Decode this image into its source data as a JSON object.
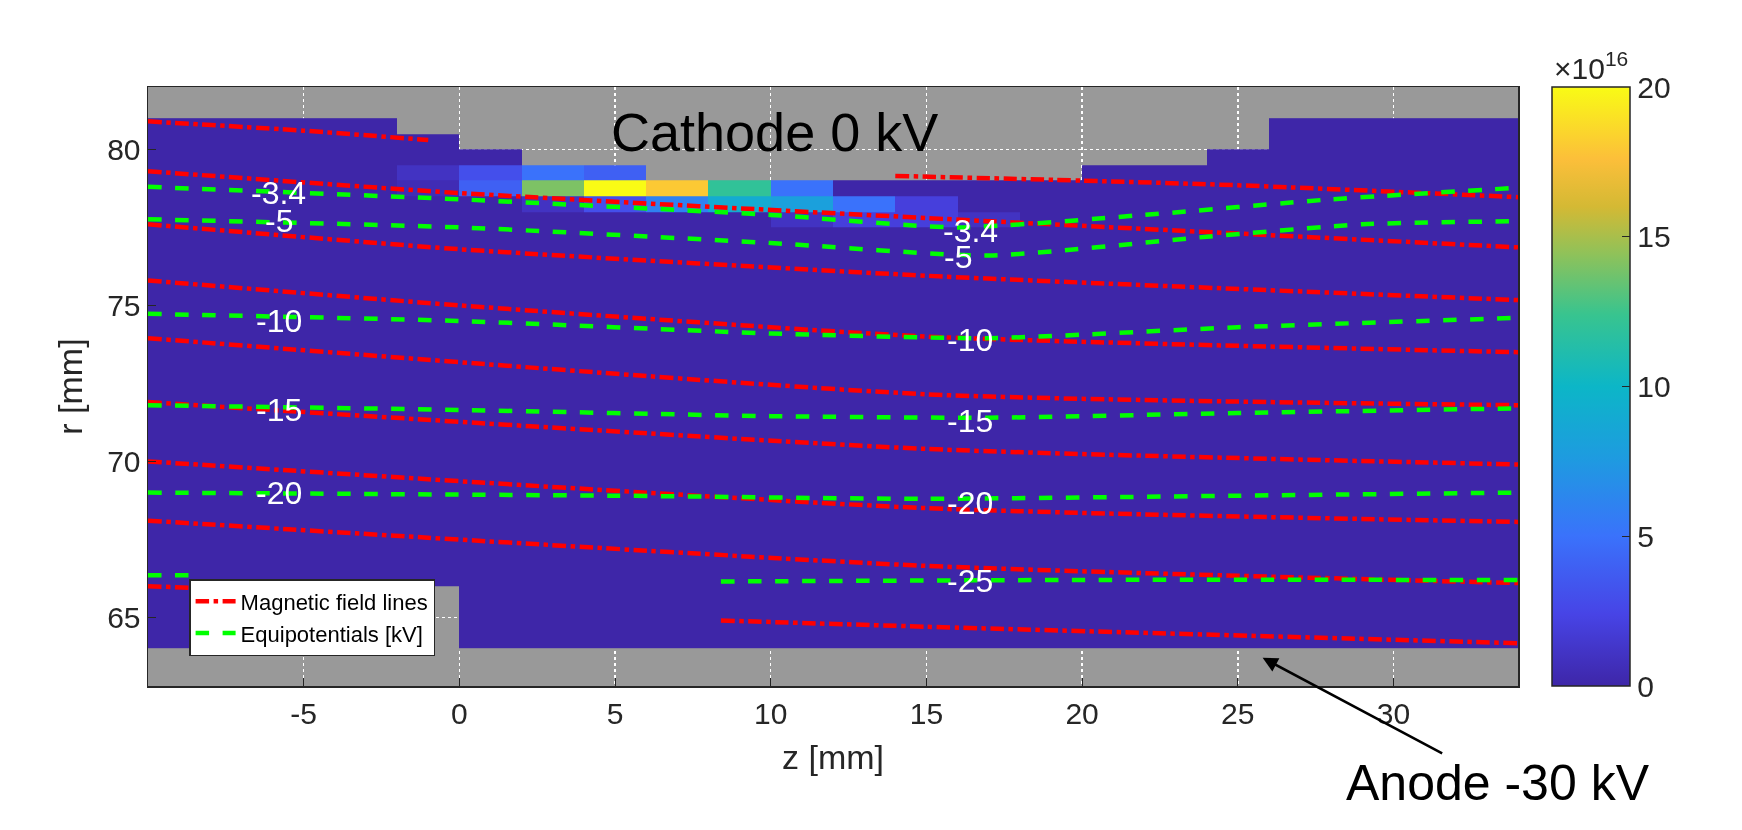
{
  "chart_data": {
    "type": "heatmap",
    "xlabel": "z [mm]",
    "ylabel": "r [mm]",
    "x": [
      -9,
      -7,
      -5,
      -3,
      -1,
      1,
      3,
      5,
      7,
      9,
      11,
      13,
      15,
      17,
      19,
      21,
      23,
      25,
      27,
      29,
      31,
      33
    ],
    "y": [
      80.75,
      80.25,
      79.75,
      79.25,
      78.75,
      78.25,
      77.75,
      77.25,
      76.75,
      76.25,
      75.5,
      74.5,
      73.5,
      72.5,
      71.5,
      70.5,
      69.5,
      68.5,
      67.5,
      66.5,
      65.5,
      64.5
    ],
    "cells": [
      [
        0,
        0,
        0,
        0,
        null,
        null,
        null,
        null,
        null,
        null,
        null,
        null,
        null,
        null,
        null,
        null,
        null,
        null,
        0,
        0,
        0,
        0
      ],
      [
        0,
        0,
        0,
        0,
        0,
        null,
        null,
        null,
        null,
        null,
        null,
        null,
        null,
        null,
        null,
        null,
        null,
        null,
        0,
        0,
        0,
        0
      ],
      [
        0,
        0,
        0,
        0,
        0,
        0,
        null,
        null,
        null,
        null,
        null,
        null,
        null,
        null,
        null,
        null,
        null,
        0,
        0,
        0,
        0,
        0
      ],
      [
        0,
        0,
        0,
        0,
        1,
        3,
        5,
        4,
        null,
        null,
        null,
        null,
        null,
        null,
        null,
        0,
        0,
        0,
        0,
        0,
        0,
        0
      ],
      [
        0,
        0,
        0,
        0,
        0.5,
        4,
        14,
        20,
        18,
        12,
        5,
        0,
        0,
        0,
        0,
        0,
        0,
        0,
        0,
        0,
        0,
        0
      ],
      [
        0,
        0,
        0,
        0,
        0,
        0,
        1,
        3,
        6,
        9,
        8,
        5,
        2,
        0,
        0,
        0,
        0,
        0,
        0,
        0,
        0,
        0
      ],
      [
        0,
        0,
        0,
        0,
        0,
        0,
        0,
        0,
        0,
        0,
        1,
        2,
        2,
        1,
        0,
        0,
        0,
        0,
        0,
        0,
        0,
        0
      ],
      [
        0,
        0,
        0,
        0,
        0,
        0,
        0,
        0,
        0,
        0,
        0,
        0,
        0,
        0,
        0,
        0,
        0,
        0,
        0,
        0,
        0,
        0
      ],
      [
        0,
        0,
        0,
        0,
        0,
        0,
        0,
        0,
        0,
        0,
        0,
        0,
        0,
        0,
        0,
        0,
        0,
        0,
        0,
        0,
        0,
        0
      ],
      [
        0,
        0,
        0,
        0,
        0,
        0,
        0,
        0,
        0,
        0,
        0,
        0,
        0,
        0,
        0,
        0,
        0,
        0,
        0,
        0,
        0,
        0
      ],
      [
        0,
        0,
        0,
        0,
        0,
        0,
        0,
        0,
        0,
        0,
        0,
        0,
        0,
        0,
        0,
        0,
        0,
        0,
        0,
        0,
        0,
        0
      ],
      [
        0,
        0,
        0,
        0,
        0,
        0,
        0,
        0,
        0,
        0,
        0,
        0,
        0,
        0,
        0,
        0,
        0,
        0,
        0,
        0,
        0,
        0
      ],
      [
        0,
        0,
        0,
        0,
        0,
        0,
        0,
        0,
        0,
        0,
        0,
        0,
        0,
        0,
        0,
        0,
        0,
        0,
        0,
        0,
        0,
        0
      ],
      [
        0,
        0,
        0,
        0,
        0,
        0,
        0,
        0,
        0,
        0,
        0,
        0,
        0,
        0,
        0,
        0,
        0,
        0,
        0,
        0,
        0,
        0
      ],
      [
        0,
        0,
        0,
        0,
        0,
        0,
        0,
        0,
        0,
        0,
        0,
        0,
        0,
        0,
        0,
        0,
        0,
        0,
        0,
        0,
        0,
        0
      ],
      [
        0,
        0,
        0,
        0,
        0,
        0,
        0,
        0,
        0,
        0,
        0,
        0,
        0,
        0,
        0,
        0,
        0,
        0,
        0,
        0,
        0,
        0
      ],
      [
        0,
        0,
        0,
        0,
        0,
        0,
        0,
        0,
        0,
        0,
        0,
        0,
        0,
        0,
        0,
        0,
        0,
        0,
        0,
        0,
        0,
        0
      ],
      [
        0,
        0,
        0,
        0,
        0,
        0,
        0,
        0,
        0,
        0,
        0,
        0,
        0,
        0,
        0,
        0,
        0,
        0,
        0,
        0,
        0,
        0
      ],
      [
        0,
        0,
        0,
        0,
        0,
        0,
        0,
        0,
        0,
        0,
        0,
        0,
        0,
        0,
        0,
        0,
        0,
        0,
        0,
        0,
        0,
        0
      ],
      [
        0,
        0,
        0,
        0,
        0,
        0,
        0,
        0,
        0,
        0,
        0,
        0,
        0,
        0,
        0,
        0,
        0,
        0,
        0,
        0,
        0,
        0
      ],
      [
        0,
        null,
        null,
        null,
        null,
        0,
        0,
        0,
        0,
        0,
        0,
        0,
        0,
        0,
        0,
        0,
        0,
        0,
        0,
        0,
        0,
        0
      ],
      [
        0,
        null,
        null,
        null,
        null,
        0,
        0,
        0,
        0,
        0,
        0,
        0,
        0,
        0,
        0,
        0,
        0,
        0,
        0,
        0,
        0,
        0
      ]
    ],
    "clim": [
      0,
      20
    ],
    "cticks": [
      0,
      5,
      10,
      15,
      20
    ],
    "xlim": [
      -10,
      34
    ],
    "ylim": [
      62.8,
      82
    ],
    "xticks": [
      -5,
      0,
      5,
      10,
      15,
      20,
      25,
      30
    ],
    "yticks": [
      65,
      70,
      75,
      80
    ],
    "grid": true,
    "legend": "bottom left",
    "series": [
      {
        "name": "Magnetic field lines",
        "type": "line",
        "color": "#ff0000",
        "line_style": "dashdot",
        "x": [
          -10,
          -5,
          -1,
          null,
          14,
          20,
          25,
          34,
          null,
          -10,
          0,
          15,
          34,
          null,
          -10,
          0,
          15,
          34,
          null,
          -10,
          0,
          15,
          34,
          null,
          -10,
          15,
          34,
          null,
          -10,
          15,
          34,
          null,
          -10,
          15,
          34,
          null,
          -10,
          15,
          34,
          null,
          -10,
          -8.7,
          null,
          8.4,
          15,
          34
        ],
        "values": [
          80.9,
          80.6,
          80.3,
          null,
          79.15,
          79.0,
          78.85,
          78.47,
          null,
          79.3,
          78.6,
          77.8,
          76.86,
          null,
          77.6,
          76.8,
          75.95,
          75.17,
          null,
          75.8,
          75.0,
          74.0,
          73.5,
          null,
          73.95,
          72.15,
          71.8,
          null,
          71.9,
          70.4,
          69.9,
          null,
          70.0,
          68.5,
          68.06,
          null,
          68.1,
          66.65,
          66.1,
          null,
          66.0,
          65.95,
          null,
          64.9,
          64.7,
          64.17
        ]
      },
      {
        "name": "Equipotentials [kV]",
        "type": "line",
        "color": "#00ff00",
        "line_style": "dashed",
        "x": [
          -10,
          0,
          10,
          16,
          22,
          28,
          34,
          null,
          -10,
          0,
          10,
          17,
          24,
          29,
          34,
          null,
          -10,
          0,
          10,
          17,
          25,
          34,
          null,
          -10,
          0,
          10,
          17,
          25,
          34,
          null,
          -10,
          5,
          15,
          25,
          34,
          null,
          -10,
          -8.7,
          null,
          8.4,
          20,
          34
        ],
        "values": [
          78.8,
          78.4,
          77.9,
          77.5,
          77.9,
          78.4,
          78.77,
          null,
          77.76,
          77.5,
          77.0,
          76.6,
          77.2,
          77.6,
          77.7,
          null,
          74.73,
          74.5,
          74.1,
          73.95,
          74.3,
          74.6,
          null,
          71.8,
          71.65,
          71.45,
          71.4,
          71.55,
          71.7,
          null,
          69.0,
          68.9,
          68.8,
          68.9,
          69.0,
          null,
          66.35,
          66.35,
          null,
          66.15,
          66.2,
          66.2
        ]
      }
    ],
    "annotations": [
      "Cathode 0 kV",
      {
        "text": "-3.4",
        "x": -5.8,
        "y": 78.6
      },
      {
        "text": "-5",
        "x": -5.8,
        "y": 77.7
      },
      {
        "text": "-10",
        "x": -5.8,
        "y": 74.5
      },
      {
        "text": "-15",
        "x": -5.8,
        "y": 71.65
      },
      {
        "text": "-20",
        "x": -5.8,
        "y": 69.0
      },
      {
        "text": "-3.4",
        "x": 16.4,
        "y": 77.4
      },
      {
        "text": "-5",
        "x": 16.0,
        "y": 76.55
      },
      {
        "text": "-10",
        "x": 16.4,
        "y": 73.9
      },
      {
        "text": "-15",
        "x": 16.4,
        "y": 71.3
      },
      {
        "text": "-20",
        "x": 16.4,
        "y": 68.65
      },
      {
        "text": "-25",
        "x": 16.4,
        "y": 66.15
      },
      "×10$^{16}$",
      "Anode -30 kV"
    ]
  }
}
